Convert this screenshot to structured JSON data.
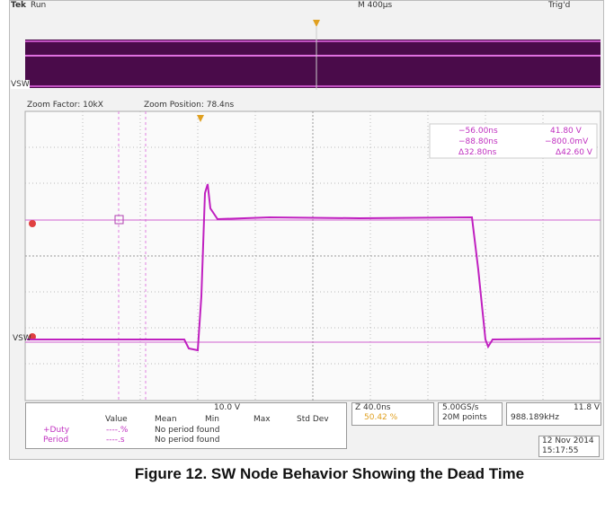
{
  "header": {
    "brand": "Tek",
    "state": "Run",
    "timebase": "M 400µs",
    "trigger": "Trig'd"
  },
  "overview": {
    "channel": "VSW"
  },
  "zoom": {
    "factor": "Zoom Factor: 10kX",
    "position": "Zoom Position: 78.4ns"
  },
  "cursors": {
    "t1": "−56.00ns",
    "v1": "41.80 V",
    "t2": "−88.80ns",
    "v2": "−800.0mV",
    "dt": "Δ32.80ns",
    "dv": "Δ42.60 V"
  },
  "main": {
    "channel": "VSW"
  },
  "status": {
    "ch_scale": "10.0 V",
    "zoom_time": "Z 40.0ns",
    "duty": "50.42 %",
    "rate": "5.00GS/s",
    "points": "20M points",
    "trig_level": "11.8 V",
    "freq": "988.189kHz"
  },
  "measurements": {
    "headers": [
      "Value",
      "Mean",
      "Min",
      "Max",
      "Std Dev"
    ],
    "rows": [
      {
        "name": "+Duty",
        "value": "----.%",
        "note": "No period found"
      },
      {
        "name": "Period",
        "value": "----.s",
        "note": "No period found"
      }
    ]
  },
  "datetime": {
    "date": "12 Nov 2014",
    "time": "15:17:55"
  },
  "caption": "Figure 12. SW Node Behavior Showing the Dead Time"
}
